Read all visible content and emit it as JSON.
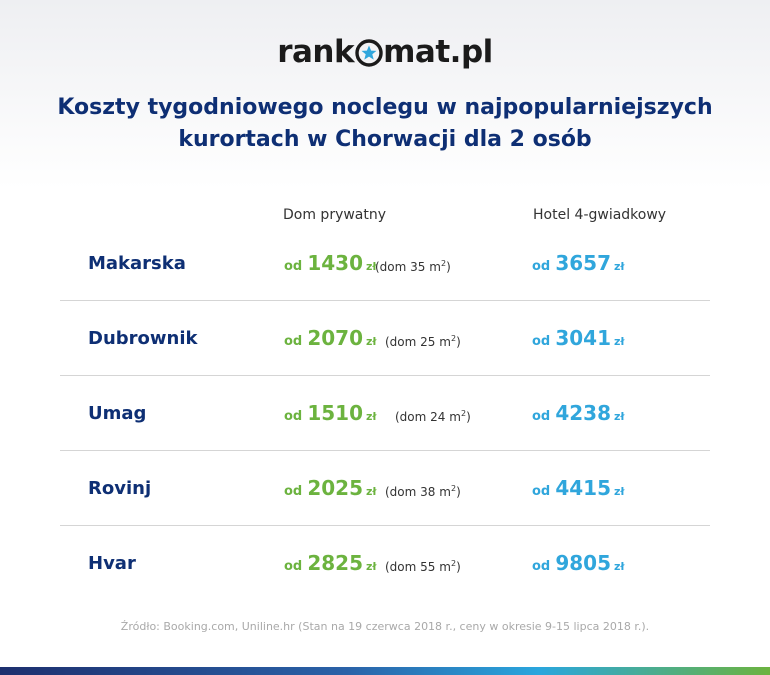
{
  "logo": {
    "left": "rank",
    "right": "mat.pl"
  },
  "title": {
    "line1": "Koszty tygodniowego noclegu w najpopularniejszych",
    "line2": "kurortach w Chorwacji dla 2 osób"
  },
  "columns": {
    "private": "Dom prywatny",
    "hotel": "Hotel 4-gwiadkowy"
  },
  "prefix": "od",
  "currency": "zł",
  "area_unit": "m",
  "area_exp": "2",
  "rows": [
    {
      "city": "Makarska",
      "private_price": "1430",
      "area_prefix": "(dom",
      "area": "35",
      "hotel_price": "3657"
    },
    {
      "city": "Dubrownik",
      "private_price": "2070",
      "area_prefix": "(dom",
      "area": "25",
      "hotel_price": "3041"
    },
    {
      "city": "Umag",
      "private_price": "1510",
      "area_prefix": "(dom",
      "area": "24",
      "hotel_price": "4238"
    },
    {
      "city": "Rovinj",
      "private_price": "2025",
      "area_prefix": "(dom",
      "area": "38",
      "hotel_price": "4415"
    },
    {
      "city": "Hvar",
      "private_price": "2825",
      "area_prefix": "(dom",
      "area": "55",
      "hotel_price": "9805"
    }
  ],
  "source": "Źródło: Booking.com, Uniline.hr (Stan na 19 czerwca 2018 r., ceny w okresie 9-15 lipca 2018 r.).",
  "colors": {
    "navy": "#0e2f74",
    "green": "#6cb33f",
    "blue": "#30a6dc"
  }
}
